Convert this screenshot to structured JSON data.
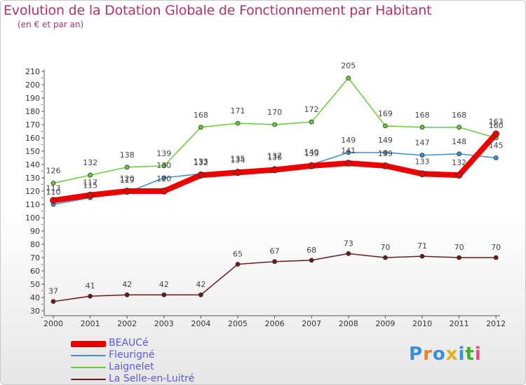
{
  "chart_data": {
    "type": "line",
    "title": "Evolution de la Dotation Globale de Fonctionnement par Habitant",
    "subtitle": "(en € et par an)",
    "xlabel": "",
    "ylabel": "",
    "ylim": [
      30,
      210
    ],
    "ytick_step": 10,
    "grid": false,
    "categories": [
      "2000",
      "2001",
      "2002",
      "2003",
      "2004",
      "2005",
      "2006",
      "2007",
      "2008",
      "2009",
      "2010",
      "2011",
      "2012"
    ],
    "series": [
      {
        "name": "BEAUCé",
        "color": "#ee0000",
        "values": [
          113,
          117,
          120,
          120,
          132,
          134,
          136,
          139,
          141,
          139,
          133,
          132,
          163
        ],
        "labels": [
          "113",
          "117",
          "120",
          "120",
          "132",
          "134",
          "136",
          "139",
          "141",
          "139",
          "133",
          "132",
          "163"
        ]
      },
      {
        "name": "Fleurigné",
        "color": "#3d8ed3",
        "values": [
          110,
          115,
          119,
          130,
          133,
          135,
          137,
          140,
          149,
          149,
          147,
          148,
          145
        ],
        "labels": [
          "110",
          "115",
          "119",
          "130",
          "133",
          "135",
          "137",
          "140",
          "149",
          "149",
          "147",
          "148",
          "145"
        ]
      },
      {
        "name": "Laignelet",
        "color": "#66cc33",
        "values": [
          126,
          132,
          138,
          139,
          168,
          171,
          170,
          172,
          205,
          169,
          168,
          168,
          160
        ],
        "labels": [
          "126",
          "132",
          "138",
          "139",
          "168",
          "171",
          "170",
          "172",
          "205",
          "169",
          "168",
          "168",
          "160"
        ]
      },
      {
        "name": "La Selle-en-Luitré",
        "color": "#6b1a1a",
        "values": [
          37,
          41,
          42,
          42,
          42,
          65,
          67,
          68,
          73,
          70,
          71,
          70,
          70
        ],
        "labels": [
          "37",
          "41",
          "42",
          "42",
          "42",
          "65",
          "67",
          "68",
          "73",
          "70",
          "71",
          "70",
          "70"
        ]
      }
    ]
  },
  "logo": {
    "text": "Proxiti",
    "colors": [
      "#3a8ede",
      "#f08020",
      "#3a8ede",
      "#e3b020",
      "#3a8ede",
      "#44aa33",
      "#e64a8a"
    ]
  }
}
